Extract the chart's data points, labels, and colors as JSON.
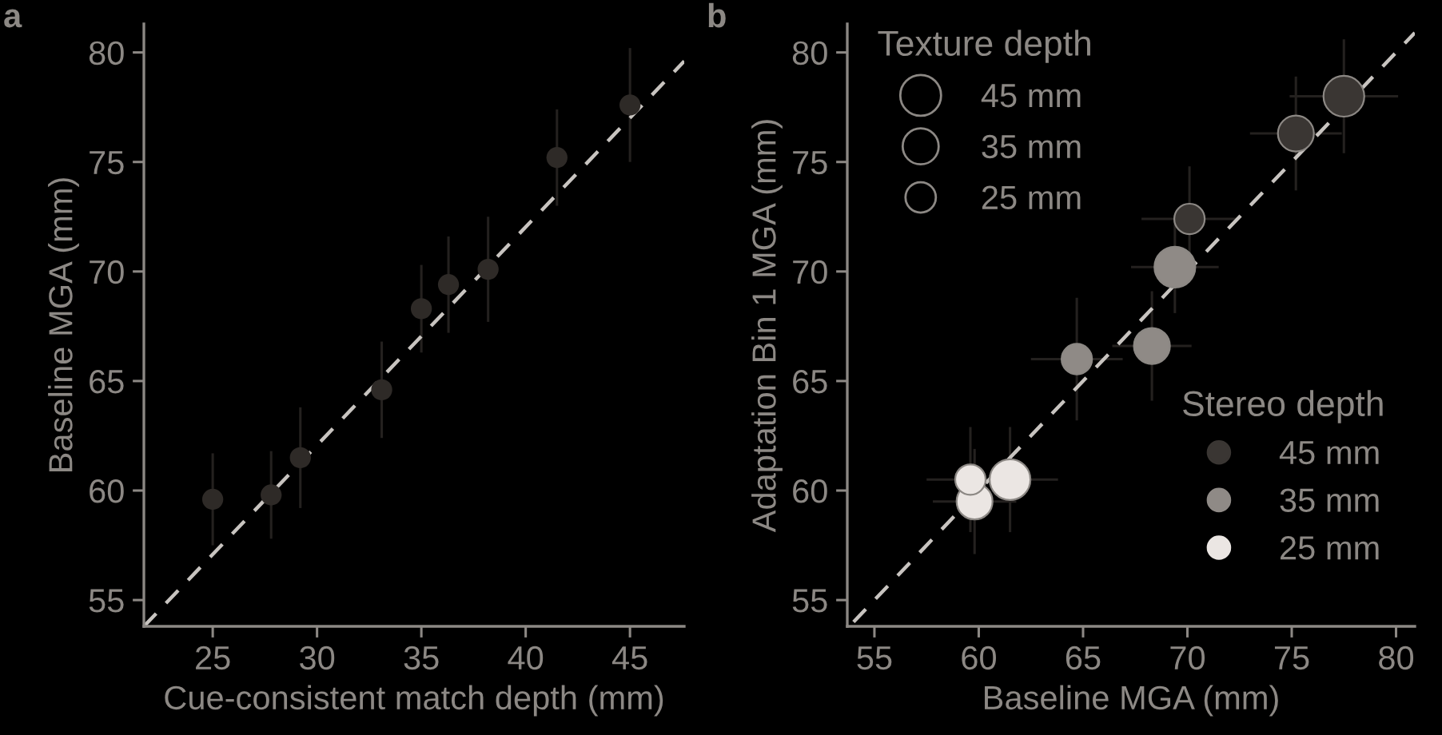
{
  "chart_data": [
    {
      "type": "scatter",
      "title": "a",
      "xlabel": "Cue-consistent match depth (mm)",
      "ylabel": "Baseline MGA (mm)",
      "xlim": [
        21.7,
        47.6
      ],
      "ylim": [
        53.8,
        81.3
      ],
      "xticks": [
        25,
        30,
        35,
        40,
        45
      ],
      "yticks": [
        55,
        60,
        65,
        70,
        75,
        80
      ],
      "grid": false,
      "legend": false,
      "series": [
        {
          "marker": "circle",
          "color": "#2e2a27",
          "x": [
            25,
            27.8,
            29.2,
            33.1,
            35.0,
            36.3,
            38.2,
            41.5,
            45
          ],
          "values": [
            59.6,
            59.8,
            61.5,
            64.6,
            68.3,
            69.4,
            70.1,
            75.2,
            77.6
          ],
          "errors": [
            2.1,
            2.0,
            2.3,
            2.2,
            2.0,
            2.2,
            2.4,
            2.2,
            2.6
          ]
        },
        {
          "type": "line",
          "line_style": "dashed",
          "color": "#c8c4c0",
          "x": [
            21.7,
            47.6
          ],
          "values": [
            53.8,
            79.6
          ]
        }
      ]
    },
    {
      "type": "bubble",
      "title": "b",
      "xlabel": "Baseline MGA (mm)",
      "ylabel": "Adaptation Bin 1 MGA (mm)",
      "xlim": [
        53.7,
        80.9
      ],
      "ylim": [
        53.8,
        81.3
      ],
      "xticks": [
        55,
        60,
        65,
        70,
        75,
        80
      ],
      "yticks": [
        55,
        60,
        65,
        70,
        75,
        80
      ],
      "grid": false,
      "legend": "bottom right",
      "legend_title": "Stereo depth",
      "annotations": [
        "Texture depth"
      ],
      "size_legend": [
        {
          "value": 45,
          "label": "45 mm"
        },
        {
          "value": 35,
          "label": "35 mm"
        },
        {
          "value": 25,
          "label": "25 mm"
        }
      ],
      "series": [
        {
          "name": "45 mm",
          "color": "#3a3633",
          "x": [
            77.5,
            75.2,
            70.1
          ],
          "values": [
            78.0,
            76.3,
            72.4
          ],
          "sizes": [
            45,
            35,
            25
          ],
          "xerrors": [
            2.6,
            2.2,
            2.3
          ],
          "errors": [
            2.6,
            2.6,
            2.4
          ]
        },
        {
          "name": "35 mm",
          "color": "#8f8a86",
          "x": [
            69.4,
            68.3,
            64.7
          ],
          "values": [
            70.2,
            66.6,
            66.0
          ],
          "sizes": [
            45,
            35,
            25
          ],
          "xerrors": [
            2.1,
            1.9,
            2.2
          ],
          "errors": [
            2.1,
            2.5,
            2.8
          ]
        },
        {
          "name": "25 mm",
          "color": "#ebe6e3",
          "x": [
            61.5,
            59.8,
            59.6
          ],
          "values": [
            60.5,
            59.5,
            60.5
          ],
          "sizes": [
            45,
            35,
            25
          ],
          "xerrors": [
            2.3,
            2.0,
            2.1
          ],
          "errors": [
            2.4,
            2.4,
            2.4
          ]
        },
        {
          "type": "line",
          "line_style": "dashed",
          "color": "#c8c4c0",
          "x": [
            54,
            80.9
          ],
          "values": [
            54,
            80.9
          ]
        }
      ]
    }
  ]
}
